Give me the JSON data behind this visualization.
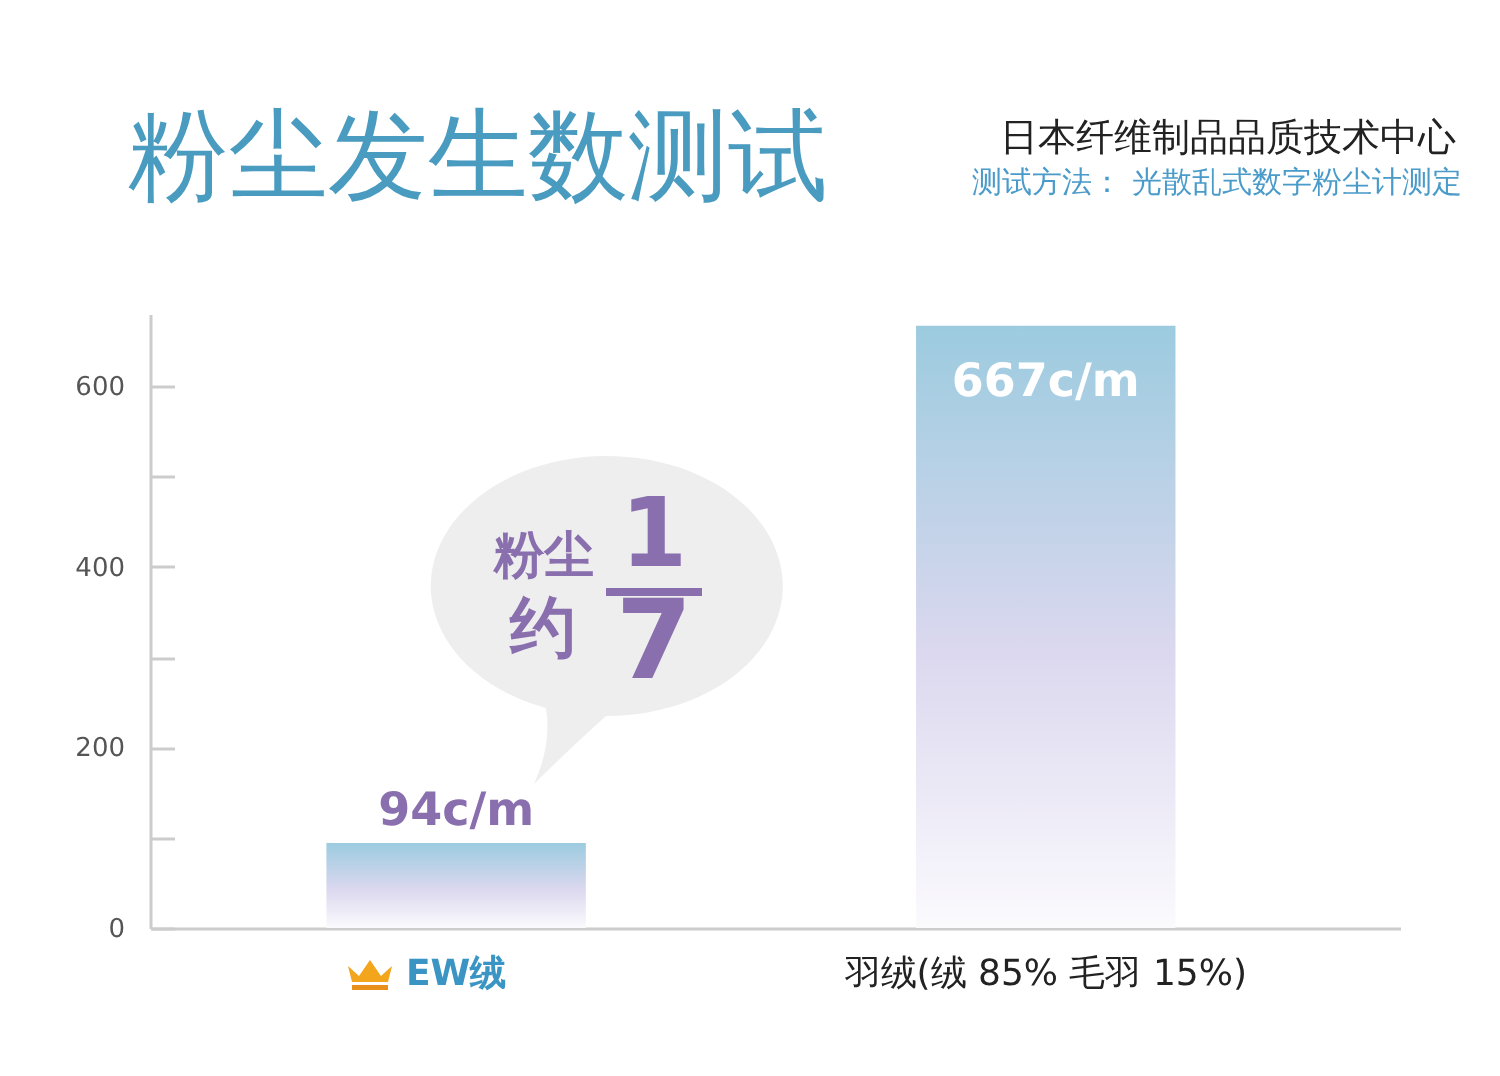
{
  "chart_data": {
    "type": "bar",
    "title": "粉尘发生数测试",
    "subtitle": "日本纤维制品品质技术中心",
    "annotations": [
      "测试方法： 光散乱式数字粉尘计测定",
      "粉尘",
      "约",
      "1",
      "7"
    ],
    "categories": [
      "EW绒",
      "羽绒(绒 85% 毛羽 15%)"
    ],
    "values": [
      94,
      667
    ],
    "value_labels": [
      "94c/m",
      "667c/m"
    ],
    "color": "#9ccbdf",
    "ylim": [
      0,
      680
    ],
    "yticks": [
      0,
      {
        "value": 100,
        "label": null
      },
      200,
      {
        "value": 300,
        "label": null
      },
      400,
      {
        "value": 500,
        "label": null
      },
      600
    ]
  }
}
